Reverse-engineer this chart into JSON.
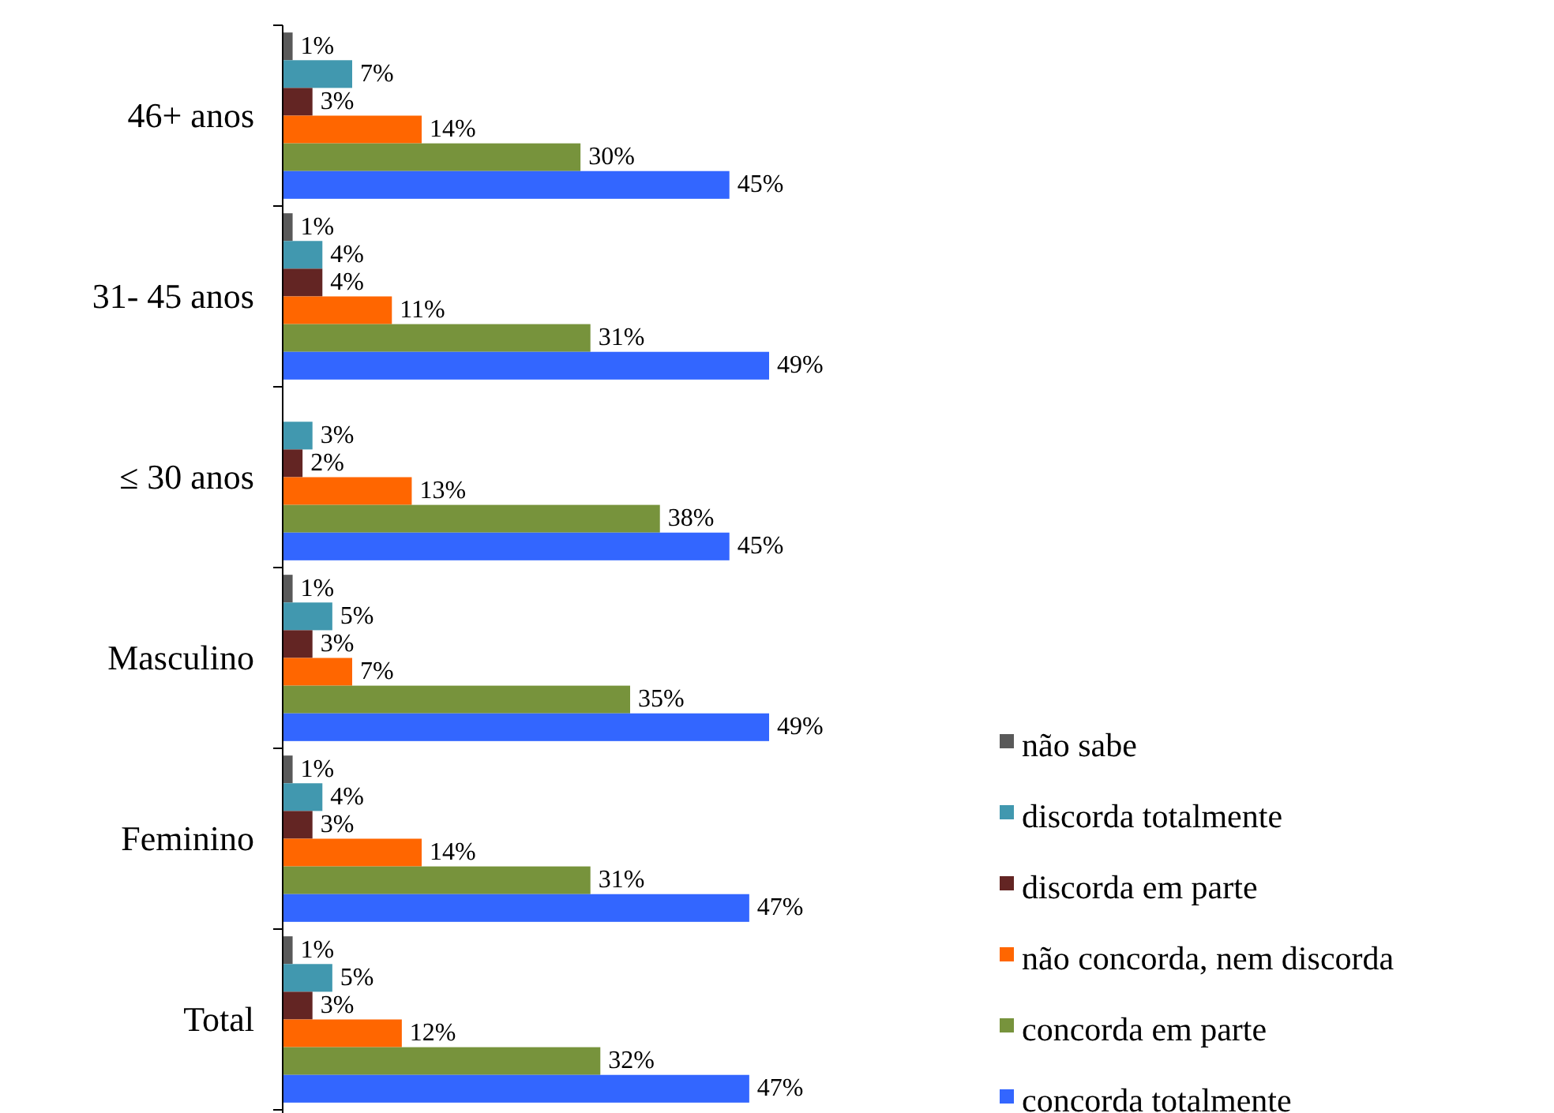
{
  "chart_data": {
    "type": "bar",
    "orientation": "horizontal",
    "categories": [
      "46+ anos",
      "31- 45 anos",
      "≤ 30 anos",
      "Masculino",
      "Feminino",
      "Total"
    ],
    "series": [
      {
        "name": "não sabe",
        "color": "#595959",
        "values": [
          1,
          1,
          null,
          1,
          1,
          1
        ],
        "value_labels": [
          "1%",
          "1%",
          null,
          "1%",
          "1%",
          "1%"
        ]
      },
      {
        "name": "discorda totalmente",
        "color": "#4198af",
        "values": [
          7,
          4,
          3,
          5,
          4,
          5
        ],
        "value_labels": [
          "7%",
          "4%",
          "3%",
          "5%",
          "4%",
          "5%"
        ]
      },
      {
        "name": "discorda em parte",
        "color": "#632523",
        "values": [
          3,
          4,
          2,
          3,
          3,
          3
        ],
        "value_labels": [
          "3%",
          "4%",
          "2%",
          "3%",
          "3%",
          "3%"
        ]
      },
      {
        "name": "não concorda, nem discorda",
        "color": "#ff6600",
        "values": [
          14,
          11,
          13,
          7,
          14,
          12
        ],
        "value_labels": [
          "14%",
          "11%",
          "13%",
          "7%",
          "14%",
          "12%"
        ]
      },
      {
        "name": "concorda em parte",
        "color": "#77933c",
        "values": [
          30,
          31,
          38,
          35,
          31,
          32
        ],
        "value_labels": [
          "30%",
          "31%",
          "38%",
          "35%",
          "31%",
          "32%"
        ]
      },
      {
        "name": "concorda totalmente",
        "color": "#3366ff",
        "values": [
          45,
          49,
          45,
          49,
          47,
          47
        ],
        "value_labels": [
          "45%",
          "49%",
          "45%",
          "49%",
          "47%",
          "47%"
        ]
      }
    ],
    "legend": "right",
    "tick_labels": "y"
  }
}
